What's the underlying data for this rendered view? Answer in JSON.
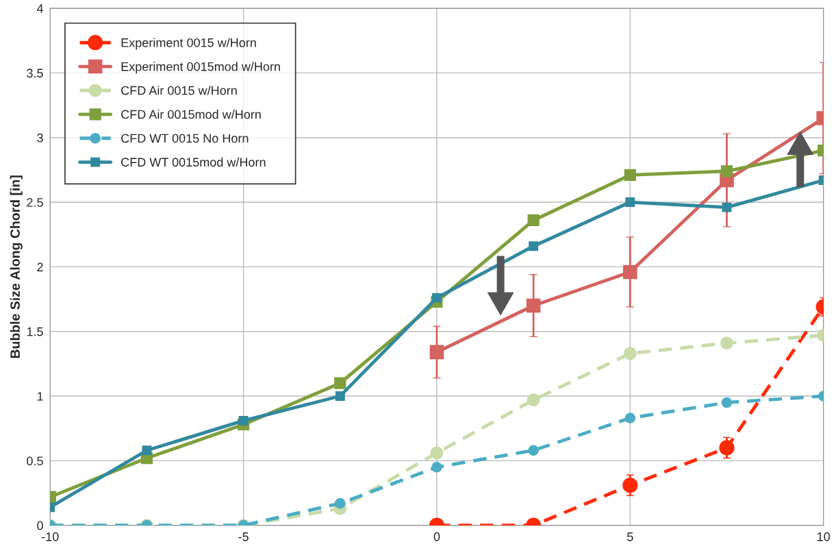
{
  "chart_data": {
    "type": "line",
    "ylabel": "Bubble Size Along Chord [in]",
    "xlim": [
      -10,
      10
    ],
    "xticks": [
      -10,
      -5,
      0,
      5,
      10
    ],
    "ylim": [
      0,
      4
    ],
    "yticks": [
      0,
      0.5,
      1,
      1.5,
      2,
      2.5,
      3,
      3.5,
      4
    ],
    "grid": true,
    "legend": "top left",
    "series": [
      {
        "name": "Experiment 0015 w/Horn",
        "color": "#ff2a0a",
        "marker": "circle",
        "line_style": "dashed",
        "x": [
          0,
          2.5,
          5,
          7.5,
          10
        ],
        "values": [
          0,
          0,
          0.31,
          0.6,
          1.69
        ],
        "errors": [
          null,
          null,
          0.08,
          0.08,
          0.07
        ]
      },
      {
        "name": "Experiment 0015mod w/Horn",
        "color": "#d4625d",
        "marker": "square",
        "line_style": "solid",
        "x": [
          0,
          2.5,
          5,
          7.5,
          10
        ],
        "values": [
          1.34,
          1.7,
          1.96,
          2.67,
          3.15
        ],
        "errors": [
          0.2,
          0.24,
          0.27,
          0.36,
          0.43
        ]
      },
      {
        "name": "CFD Air 0015 w/Horn",
        "color": "#c8dba8",
        "marker": "circle",
        "line_style": "dashed",
        "x": [
          -10,
          -7.5,
          -5,
          -2.5,
          0,
          2.5,
          5,
          7.5,
          10
        ],
        "values": [
          0,
          0,
          0,
          0.13,
          0.56,
          0.97,
          1.33,
          1.41,
          1.47
        ]
      },
      {
        "name": "CFD Air 0015mod w/Horn",
        "color": "#7f9f3c",
        "marker": "square",
        "line_style": "solid",
        "x": [
          -10,
          -7.5,
          -5,
          -2.5,
          0,
          2.5,
          5,
          7.5,
          10
        ],
        "values": [
          0.22,
          0.52,
          0.78,
          1.1,
          1.73,
          2.36,
          2.71,
          2.74,
          2.9
        ]
      },
      {
        "name": "CFD WT 0015 No Horn",
        "color": "#4bacc6",
        "marker": "circle",
        "line_style": "dashed",
        "x": [
          -10,
          -7.5,
          -5,
          -2.5,
          0,
          2.5,
          5,
          7.5,
          10
        ],
        "values": [
          0,
          0,
          0,
          0.17,
          0.45,
          0.58,
          0.83,
          0.95,
          1.0
        ]
      },
      {
        "name": "CFD WT 0015mod w/Horn",
        "color": "#31899e",
        "marker": "square",
        "line_style": "solid",
        "x": [
          -10,
          -7.5,
          -5,
          -2.5,
          0,
          2.5,
          5,
          7.5,
          10
        ],
        "values": [
          0.14,
          0.58,
          0.81,
          1.0,
          1.76,
          2.16,
          2.5,
          2.46,
          2.67
        ]
      }
    ]
  }
}
